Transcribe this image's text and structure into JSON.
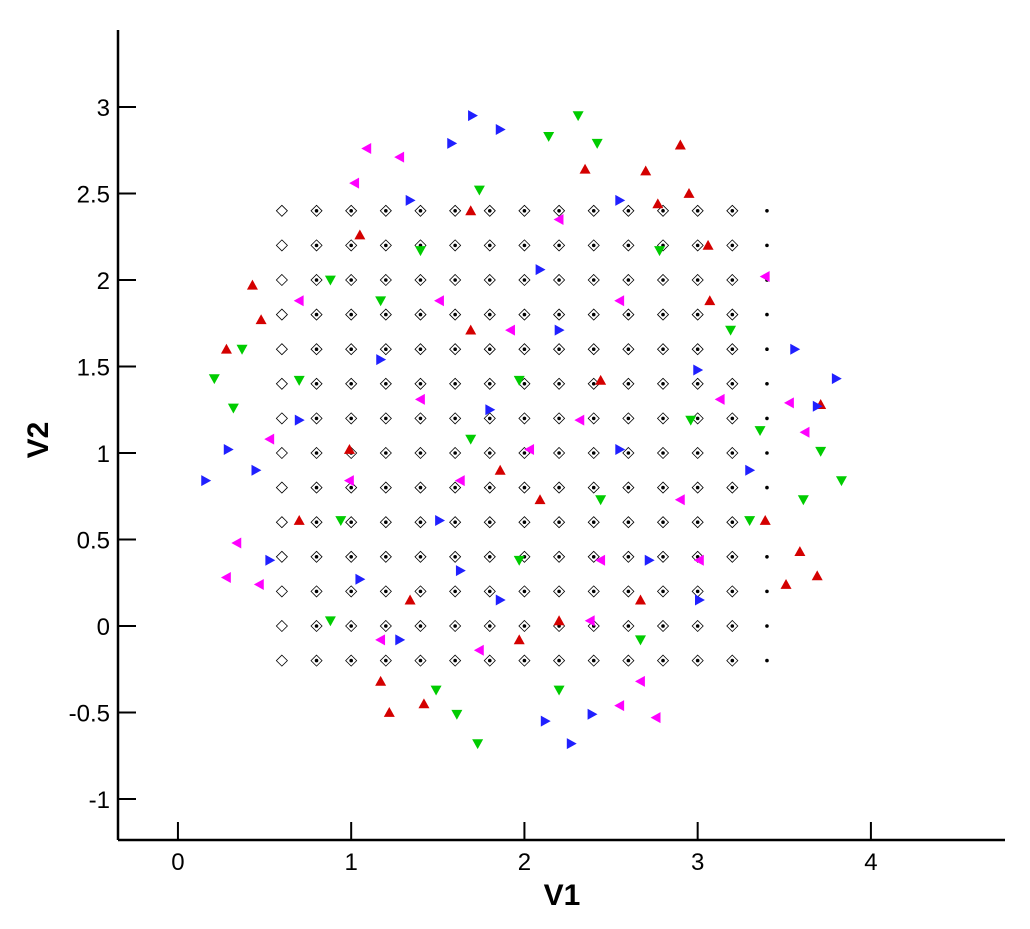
{
  "chart_data": {
    "type": "scatter",
    "xlabel": "V1",
    "ylabel": "V2",
    "xlim": [
      -0.346,
      4.774
    ],
    "ylim": [
      -1.237,
      3.445
    ],
    "xticks": [
      0,
      1,
      2,
      3,
      4
    ],
    "yticks": [
      -1,
      -0.5,
      0,
      0.5,
      1,
      1.5,
      2,
      2.5,
      3
    ],
    "series": [
      {
        "color": "#000000",
        "marker": "diamond",
        "x": [
          0.6,
          0.8,
          1,
          1.2,
          1.4,
          1.6,
          1.8,
          2,
          2.2,
          2.4,
          2.6,
          2.8,
          3,
          3.2,
          0.6,
          0.8,
          1,
          1.2,
          1.4,
          1.6,
          1.8,
          2,
          2.2,
          2.4,
          2.6,
          2.8,
          3,
          3.2,
          0.6,
          0.8,
          1,
          1.2,
          1.4,
          1.6,
          1.8,
          2,
          2.2,
          2.4,
          2.6,
          2.8,
          3,
          3.2,
          0.6,
          0.8,
          1,
          1.2,
          1.4,
          1.6,
          1.8,
          2,
          2.2,
          2.4,
          2.6,
          2.8,
          3,
          3.2,
          0.6,
          0.8,
          1,
          1.2,
          1.4,
          1.6,
          1.8,
          2,
          2.2,
          2.4,
          2.6,
          2.8,
          3,
          3.2,
          0.6,
          0.8,
          1,
          1.2,
          1.4,
          1.6,
          1.8,
          2,
          2.2,
          2.4,
          2.6,
          2.8,
          3,
          3.2,
          0.6,
          0.8,
          1,
          1.2,
          1.4,
          1.6,
          1.8,
          2,
          2.2,
          2.4,
          2.6,
          2.8,
          3,
          3.2,
          0.6,
          0.8,
          1,
          1.2,
          1.4,
          1.6,
          1.8,
          2,
          2.2,
          2.4,
          2.6,
          2.8,
          3,
          3.2,
          0.6,
          0.8,
          1,
          1.2,
          1.4,
          1.6,
          1.8,
          2,
          2.2,
          2.4,
          2.6,
          2.8,
          3,
          3.2,
          0.6,
          0.8,
          1,
          1.2,
          1.4,
          1.6,
          1.8,
          2,
          2.2,
          2.4,
          2.6,
          2.8,
          3,
          3.2,
          0.6,
          0.8,
          1,
          1.2,
          1.4,
          1.6,
          1.8,
          2,
          2.2,
          2.4,
          2.6,
          2.8,
          3,
          3.2,
          0.6,
          0.8,
          1,
          1.2,
          1.4,
          1.6,
          1.8,
          2,
          2.2,
          2.4,
          2.6,
          2.8,
          3,
          3.2,
          0.6,
          0.8,
          1,
          1.2,
          1.4,
          1.6,
          1.8,
          2,
          2.2,
          2.4,
          2.6,
          2.8,
          3,
          3.2,
          0.6,
          0.8,
          1,
          1.2,
          1.4,
          1.6,
          1.8,
          2,
          2.2,
          2.4,
          2.6,
          2.8,
          3,
          3.2
        ],
        "y": [
          -0.2,
          -0.2,
          -0.2,
          -0.2,
          -0.2,
          -0.2,
          -0.2,
          -0.2,
          -0.2,
          -0.2,
          -0.2,
          -0.2,
          -0.2,
          -0.2,
          0,
          0,
          0,
          0,
          0,
          0,
          0,
          0,
          0,
          0,
          0,
          0,
          0,
          0,
          0.2,
          0.2,
          0.2,
          0.2,
          0.2,
          0.2,
          0.2,
          0.2,
          0.2,
          0.2,
          0.2,
          0.2,
          0.2,
          0.2,
          0.4,
          0.4,
          0.4,
          0.4,
          0.4,
          0.4,
          0.4,
          0.4,
          0.4,
          0.4,
          0.4,
          0.4,
          0.4,
          0.4,
          0.6,
          0.6,
          0.6,
          0.6,
          0.6,
          0.6,
          0.6,
          0.6,
          0.6,
          0.6,
          0.6,
          0.6,
          0.6,
          0.6,
          0.8,
          0.8,
          0.8,
          0.8,
          0.8,
          0.8,
          0.8,
          0.8,
          0.8,
          0.8,
          0.8,
          0.8,
          0.8,
          0.8,
          1,
          1,
          1,
          1,
          1,
          1,
          1,
          1,
          1,
          1,
          1,
          1,
          1,
          1,
          1.2,
          1.2,
          1.2,
          1.2,
          1.2,
          1.2,
          1.2,
          1.2,
          1.2,
          1.2,
          1.2,
          1.2,
          1.2,
          1.2,
          1.4,
          1.4,
          1.4,
          1.4,
          1.4,
          1.4,
          1.4,
          1.4,
          1.4,
          1.4,
          1.4,
          1.4,
          1.4,
          1.4,
          1.6,
          1.6,
          1.6,
          1.6,
          1.6,
          1.6,
          1.6,
          1.6,
          1.6,
          1.6,
          1.6,
          1.6,
          1.6,
          1.6,
          1.8,
          1.8,
          1.8,
          1.8,
          1.8,
          1.8,
          1.8,
          1.8,
          1.8,
          1.8,
          1.8,
          1.8,
          1.8,
          1.8,
          2,
          2,
          2,
          2,
          2,
          2,
          2,
          2,
          2,
          2,
          2,
          2,
          2,
          2,
          2.2,
          2.2,
          2.2,
          2.2,
          2.2,
          2.2,
          2.2,
          2.2,
          2.2,
          2.2,
          2.2,
          2.2,
          2.2,
          2.2,
          2.4,
          2.4,
          2.4,
          2.4,
          2.4,
          2.4,
          2.4,
          2.4,
          2.4,
          2.4,
          2.4,
          2.4,
          2.4,
          2.4
        ]
      },
      {
        "color": "#000000",
        "marker": "dot",
        "x": [
          0.8,
          1,
          1.2,
          1.4,
          1.6,
          1.8,
          2,
          2.2,
          2.4,
          2.6,
          2.8,
          3,
          3.2,
          3.4,
          0.8,
          1,
          1.2,
          1.4,
          1.6,
          1.8,
          2,
          2.2,
          2.4,
          2.6,
          2.8,
          3,
          3.2,
          3.4,
          0.8,
          1,
          1.2,
          1.4,
          1.6,
          1.8,
          2,
          2.2,
          2.4,
          2.6,
          2.8,
          3,
          3.2,
          3.4,
          0.8,
          1,
          1.2,
          1.4,
          1.6,
          1.8,
          2,
          2.2,
          2.4,
          2.6,
          2.8,
          3,
          3.2,
          3.4,
          0.8,
          1,
          1.2,
          1.4,
          1.6,
          1.8,
          2,
          2.2,
          2.4,
          2.6,
          2.8,
          3,
          3.2,
          3.4,
          0.8,
          1,
          1.2,
          1.4,
          1.6,
          1.8,
          2,
          2.2,
          2.4,
          2.6,
          2.8,
          3,
          3.2,
          3.4,
          0.8,
          1,
          1.2,
          1.4,
          1.6,
          1.8,
          2,
          2.2,
          2.4,
          2.6,
          2.8,
          3,
          3.2,
          3.4,
          0.8,
          1,
          1.2,
          1.4,
          1.6,
          1.8,
          2,
          2.2,
          2.4,
          2.6,
          2.8,
          3,
          3.2,
          3.4,
          0.8,
          1,
          1.2,
          1.4,
          1.6,
          1.8,
          2,
          2.2,
          2.4,
          2.6,
          2.8,
          3,
          3.2,
          3.4,
          0.8,
          1,
          1.2,
          1.4,
          1.6,
          1.8,
          2,
          2.2,
          2.4,
          2.6,
          2.8,
          3,
          3.2,
          3.4,
          0.8,
          1,
          1.2,
          1.4,
          1.6,
          1.8,
          2,
          2.2,
          2.4,
          2.6,
          2.8,
          3,
          3.2,
          3.4,
          0.8,
          1,
          1.2,
          1.4,
          1.6,
          1.8,
          2,
          2.2,
          2.4,
          2.6,
          2.8,
          3,
          3.2,
          3.4,
          0.8,
          1,
          1.2,
          1.4,
          1.6,
          1.8,
          2,
          2.2,
          2.4,
          2.6,
          2.8,
          3,
          3.2,
          3.4,
          0.8,
          1,
          1.2,
          1.4,
          1.6,
          1.8,
          2,
          2.2,
          2.4,
          2.6,
          2.8,
          3,
          3.2,
          3.4
        ],
        "y": [
          -0.2,
          -0.2,
          -0.2,
          -0.2,
          -0.2,
          -0.2,
          -0.2,
          -0.2,
          -0.2,
          -0.2,
          -0.2,
          -0.2,
          -0.2,
          -0.2,
          0,
          0,
          0,
          0,
          0,
          0,
          0,
          0,
          0,
          0,
          0,
          0,
          0,
          0,
          0.2,
          0.2,
          0.2,
          0.2,
          0.2,
          0.2,
          0.2,
          0.2,
          0.2,
          0.2,
          0.2,
          0.2,
          0.2,
          0.2,
          0.4,
          0.4,
          0.4,
          0.4,
          0.4,
          0.4,
          0.4,
          0.4,
          0.4,
          0.4,
          0.4,
          0.4,
          0.4,
          0.4,
          0.6,
          0.6,
          0.6,
          0.6,
          0.6,
          0.6,
          0.6,
          0.6,
          0.6,
          0.6,
          0.6,
          0.6,
          0.6,
          0.6,
          0.8,
          0.8,
          0.8,
          0.8,
          0.8,
          0.8,
          0.8,
          0.8,
          0.8,
          0.8,
          0.8,
          0.8,
          0.8,
          0.8,
          1,
          1,
          1,
          1,
          1,
          1,
          1,
          1,
          1,
          1,
          1,
          1,
          1,
          1,
          1.2,
          1.2,
          1.2,
          1.2,
          1.2,
          1.2,
          1.2,
          1.2,
          1.2,
          1.2,
          1.2,
          1.2,
          1.2,
          1.2,
          1.4,
          1.4,
          1.4,
          1.4,
          1.4,
          1.4,
          1.4,
          1.4,
          1.4,
          1.4,
          1.4,
          1.4,
          1.4,
          1.4,
          1.6,
          1.6,
          1.6,
          1.6,
          1.6,
          1.6,
          1.6,
          1.6,
          1.6,
          1.6,
          1.6,
          1.6,
          1.6,
          1.6,
          1.8,
          1.8,
          1.8,
          1.8,
          1.8,
          1.8,
          1.8,
          1.8,
          1.8,
          1.8,
          1.8,
          1.8,
          1.8,
          1.8,
          2,
          2,
          2,
          2,
          2,
          2,
          2,
          2,
          2,
          2,
          2,
          2,
          2,
          2,
          2.2,
          2.2,
          2.2,
          2.2,
          2.2,
          2.2,
          2.2,
          2.2,
          2.2,
          2.2,
          2.2,
          2.2,
          2.2,
          2.2,
          2.4,
          2.4,
          2.4,
          2.4,
          2.4,
          2.4,
          2.4,
          2.4,
          2.4,
          2.4,
          2.4,
          2.4,
          2.4,
          2.4
        ]
      },
      {
        "color": "#d40000",
        "marker": "triangle-up",
        "x": [
          2.9,
          2.95,
          2.7,
          2.77,
          0.43,
          0.48,
          0.28,
          3.59,
          3.69,
          3.51,
          1.22,
          1.42,
          1.17,
          3.71,
          3.39,
          2.09,
          1.86,
          1.69,
          2.44,
          0.99,
          2.67,
          2.2,
          1.34,
          0.7,
          3.07,
          2.35,
          1.69,
          1.05,
          3.06,
          1.97
        ],
        "y": [
          2.78,
          2.5,
          2.63,
          2.44,
          1.97,
          1.77,
          1.6,
          0.43,
          0.29,
          0.24,
          -0.5,
          -0.45,
          -0.32,
          1.28,
          0.61,
          0.73,
          0.9,
          1.71,
          1.42,
          1.02,
          0.15,
          0.03,
          0.15,
          0.61,
          1.88,
          2.64,
          2.4,
          2.26,
          2.2,
          -0.08
        ]
      },
      {
        "color": "#00cc00",
        "marker": "triangle-down",
        "x": [
          2.14,
          2.31,
          2.42,
          0.21,
          0.32,
          0.37,
          3.83,
          3.71,
          1.73,
          1.61,
          1.49,
          3.61,
          3.36,
          3.19,
          2.44,
          1.69,
          1.97,
          1.17,
          0.88,
          1.4,
          2.78,
          2.96,
          0.7,
          0.94,
          1.97,
          2.67,
          2.2,
          0.88,
          1.74,
          3.3
        ],
        "y": [
          2.83,
          2.95,
          2.79,
          1.43,
          1.26,
          1.6,
          0.84,
          1.01,
          -0.68,
          -0.51,
          -0.37,
          0.73,
          1.13,
          1.71,
          0.73,
          1.08,
          1.42,
          1.88,
          2.0,
          2.17,
          2.17,
          1.19,
          1.42,
          0.61,
          0.38,
          -0.08,
          -0.37,
          0.03,
          2.52,
          0.61
        ]
      },
      {
        "color": "#2020ff",
        "marker": "triangle-right",
        "x": [
          1.7,
          1.86,
          1.58,
          0.16,
          0.29,
          0.45,
          3.8,
          3.69,
          3.56,
          2.27,
          2.12,
          2.39,
          1.8,
          2.2,
          2.55,
          1.51,
          1.17,
          3.0,
          2.72,
          1.28,
          0.7,
          1.05,
          2.55,
          1.34,
          3.3,
          1.86,
          2.09,
          1.63,
          3.01,
          0.53
        ],
        "y": [
          2.95,
          2.87,
          2.79,
          0.84,
          1.02,
          0.9,
          1.43,
          1.27,
          1.6,
          -0.68,
          -0.55,
          -0.51,
          1.25,
          1.71,
          1.02,
          0.61,
          1.54,
          1.48,
          0.38,
          -0.08,
          1.19,
          0.27,
          2.46,
          2.46,
          0.9,
          0.15,
          2.06,
          0.32,
          0.15,
          0.38
        ]
      },
      {
        "color": "#ff00ff",
        "marker": "triangle-left",
        "x": [
          1.09,
          1.28,
          1.02,
          0.28,
          0.34,
          0.47,
          2.76,
          2.55,
          2.67,
          3.62,
          3.53,
          3.39,
          2.03,
          1.63,
          2.32,
          1.92,
          1.4,
          2.44,
          0.99,
          2.9,
          1.51,
          2.55,
          0.7,
          1.17,
          2.2,
          3.13,
          3.01,
          0.53,
          1.74,
          2.38
        ],
        "y": [
          2.76,
          2.71,
          2.56,
          0.28,
          0.48,
          0.24,
          -0.53,
          -0.46,
          -0.32,
          1.12,
          1.29,
          2.02,
          1.02,
          0.84,
          1.19,
          1.71,
          1.31,
          0.38,
          0.84,
          0.73,
          1.88,
          1.88,
          1.88,
          -0.08,
          2.35,
          1.31,
          0.38,
          1.08,
          -0.14,
          0.03
        ]
      }
    ]
  }
}
